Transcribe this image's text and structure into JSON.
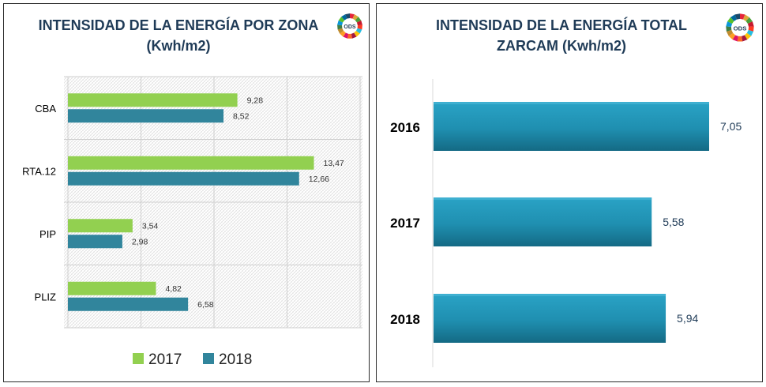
{
  "left_chart": {
    "title_line1": "INTENSIDAD DE LA ENERGÍA POR ZONA",
    "title_line2": "(Kwh/m2)",
    "logo_label": "ODS",
    "colors": {
      "s2017": "#92d050",
      "s2018": "#31859c"
    }
  },
  "right_chart": {
    "title_line1": "INTENSIDAD DE LA ENERGÍA TOTAL",
    "title_line2": "ZARCAM (Kwh/m2)",
    "logo_label": "ODS",
    "colors": {
      "bar": "#1f8fb0",
      "bar_dark": "#17708a",
      "value_text": "#1f3b57"
    }
  },
  "chart_data": [
    {
      "type": "bar",
      "orientation": "horizontal",
      "title": "INTENSIDAD DE LA ENERGÍA POR ZONA (Kwh/m2)",
      "categories": [
        "CBA",
        "RTA.12",
        "PIP",
        "PLIZ"
      ],
      "series": [
        {
          "name": "2017",
          "values": [
            9.28,
            13.47,
            3.54,
            4.82
          ],
          "labels": [
            "9,28",
            "13,47",
            "3,54",
            "4,82"
          ]
        },
        {
          "name": "2018",
          "values": [
            8.52,
            12.66,
            2.98,
            6.58
          ],
          "labels": [
            "8,52",
            "12,66",
            "2,98",
            "6,58"
          ]
        }
      ],
      "xlim": [
        0,
        16
      ],
      "grid": true,
      "legend_position": "bottom"
    },
    {
      "type": "bar",
      "orientation": "horizontal",
      "title": "INTENSIDAD DE LA ENERGÍA TOTAL ZARCAM (Kwh/m2)",
      "categories": [
        "2016",
        "2017",
        "2018"
      ],
      "values": [
        7.05,
        5.58,
        5.94
      ],
      "labels": [
        "7,05",
        "5,58",
        "5,94"
      ],
      "xlim": [
        0,
        8
      ],
      "grid": false
    }
  ]
}
